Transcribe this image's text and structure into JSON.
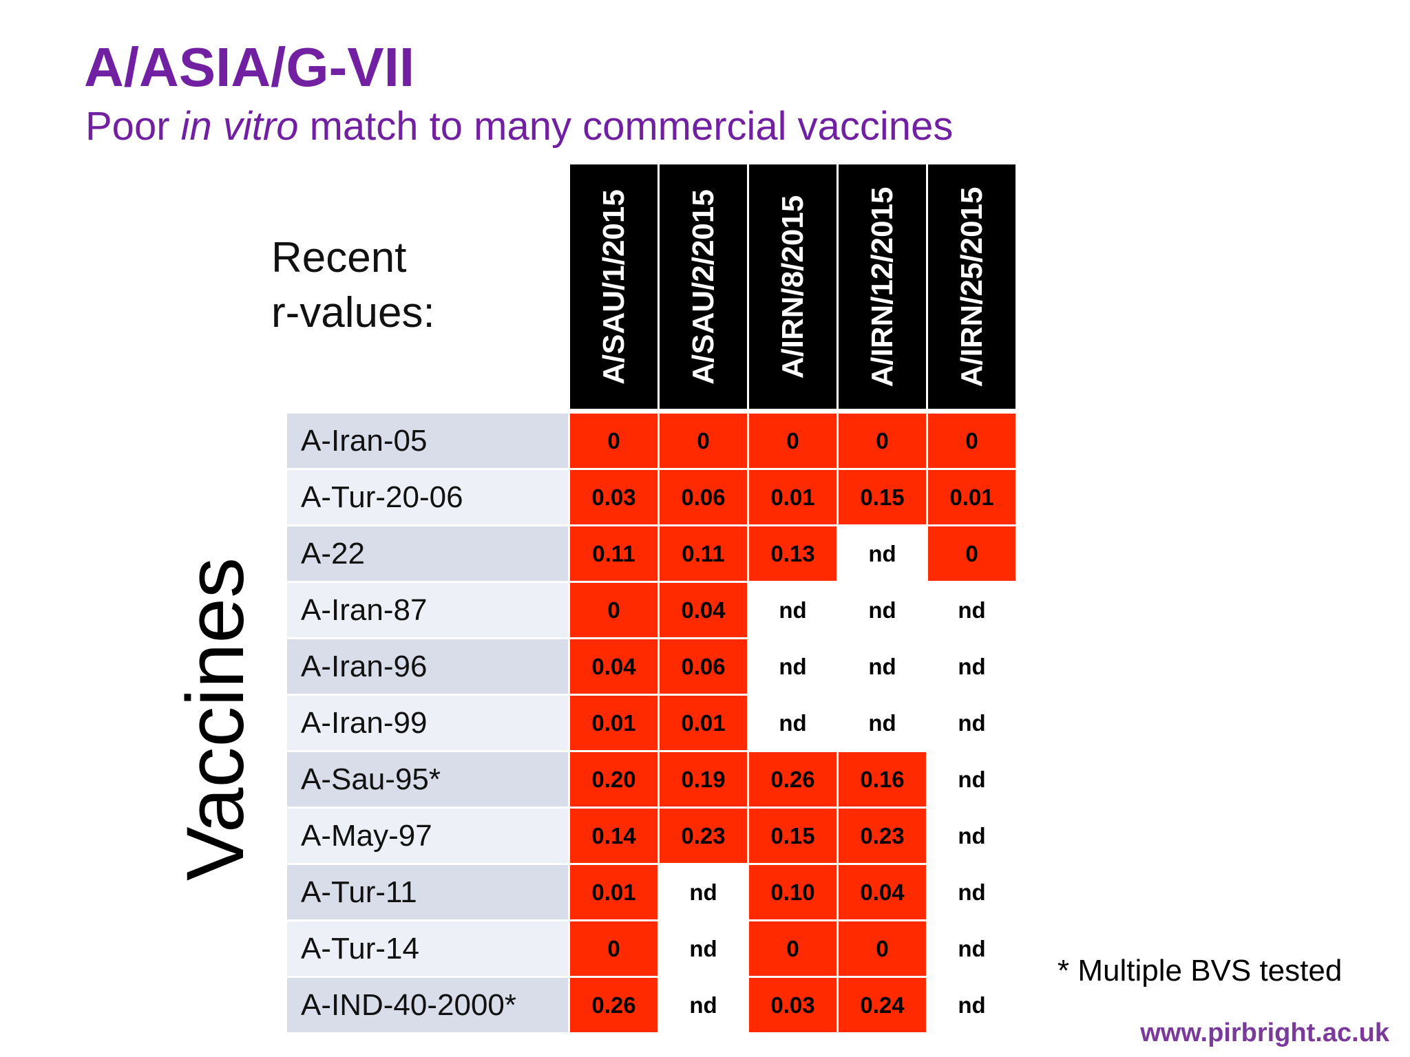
{
  "header": {
    "title": "A/ASIA/G-VII",
    "subtitle": [
      "Poor ",
      "in vitro",
      " match to many commercial vaccines"
    ]
  },
  "table": {
    "corner_label": [
      "Recent",
      "r-values:"
    ],
    "side_label": "Vaccines",
    "highlight_color": "#ff2a00",
    "columns": [
      "A/SAU/1/2015",
      "A/SAU/2/2015",
      "A/IRN/8/2015",
      "A/IRN/12/2015",
      "A/IRN/25/2015"
    ],
    "rows": [
      {
        "label": "A-Iran-05",
        "cells": [
          "0",
          "0",
          "0",
          "0",
          "0"
        ]
      },
      {
        "label": "A-Tur-20-06",
        "cells": [
          "0.03",
          "0.06",
          "0.01",
          "0.15",
          "0.01"
        ]
      },
      {
        "label": "A-22",
        "cells": [
          "0.11",
          "0.11",
          "0.13",
          "nd",
          "0"
        ]
      },
      {
        "label": "A-Iran-87",
        "cells": [
          "0",
          "0.04",
          "nd",
          "nd",
          "nd"
        ]
      },
      {
        "label": "A-Iran-96",
        "cells": [
          "0.04",
          "0.06",
          "nd",
          "nd",
          "nd"
        ]
      },
      {
        "label": "A-Iran-99",
        "cells": [
          "0.01",
          "0.01",
          "nd",
          "nd",
          "nd"
        ]
      },
      {
        "label": "A-Sau-95*",
        "cells": [
          "0.20",
          "0.19",
          "0.26",
          "0.16",
          "nd"
        ]
      },
      {
        "label": "A-May-97",
        "cells": [
          "0.14",
          "0.23",
          "0.15",
          "0.23",
          "nd"
        ]
      },
      {
        "label": "A-Tur-11",
        "cells": [
          "0.01",
          "nd",
          "0.10",
          "0.04",
          "nd"
        ]
      },
      {
        "label": "A-Tur-14",
        "cells": [
          "0",
          "nd",
          "0",
          "0",
          "nd"
        ]
      },
      {
        "label": "A-IND-40-2000*",
        "cells": [
          "0.26",
          "nd",
          "0.03",
          "0.24",
          "nd"
        ]
      }
    ]
  },
  "footnote": "* Multiple BVS tested",
  "url": "www.pirbright.ac.uk"
}
